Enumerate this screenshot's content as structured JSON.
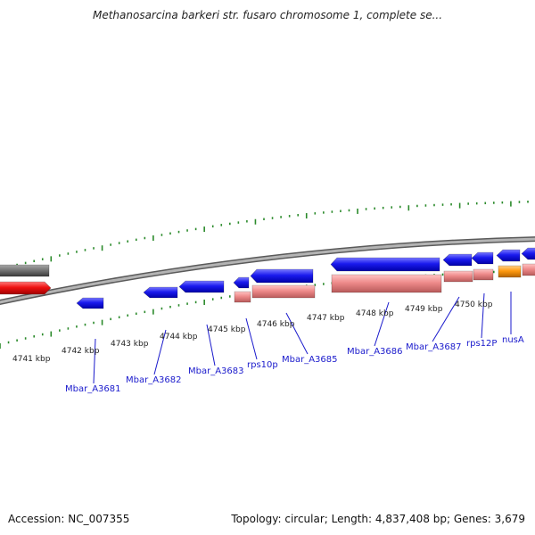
{
  "title": "Methanosarcina barkeri str. fusaro chromosome 1, complete se...",
  "footer": {
    "accession": "Accession: NC_007355",
    "summary": "Topology: circular; Length: 4,837,408 bp; Genes: 3,679"
  },
  "colors": {
    "backbone": "#8c8c8c",
    "tick": "#2a8a2a",
    "gene_forward": "#1a1aee",
    "gene_reverse": "#ee1111",
    "gene_grey": "#777777",
    "cds_pink": "#ee8a8a",
    "cds_orange": "#ff9a10",
    "label": "#1a1acc"
  },
  "scale_labels": [
    {
      "kbp": 4741,
      "text": "4741 kbp"
    },
    {
      "kbp": 4742,
      "text": "4742 kbp"
    },
    {
      "kbp": 4743,
      "text": "4743 kbp"
    },
    {
      "kbp": 4744,
      "text": "4744 kbp"
    },
    {
      "kbp": 4745,
      "text": "4745 kbp"
    },
    {
      "kbp": 4746,
      "text": "4746 kbp"
    },
    {
      "kbp": 4747,
      "text": "4747 kbp"
    },
    {
      "kbp": 4748,
      "text": "4748 kbp"
    },
    {
      "kbp": 4749,
      "text": "4749 kbp"
    },
    {
      "kbp": 4750,
      "text": "4750 kbp"
    }
  ],
  "gene_labels": [
    {
      "id": "mbar_a3681",
      "text": "Mbar_A3681"
    },
    {
      "id": "mbar_a3682",
      "text": "Mbar_A3682"
    },
    {
      "id": "mbar_a3683",
      "text": "Mbar_A3683"
    },
    {
      "id": "rps10p",
      "text": "rps10p"
    },
    {
      "id": "mbar_a3685",
      "text": "Mbar_A3685"
    },
    {
      "id": "mbar_a3686",
      "text": "Mbar_A3686"
    },
    {
      "id": "mbar_a3687",
      "text": "Mbar_A3687"
    },
    {
      "id": "rps12p",
      "text": "rps12P"
    },
    {
      "id": "nusa",
      "text": "nusA"
    }
  ]
}
